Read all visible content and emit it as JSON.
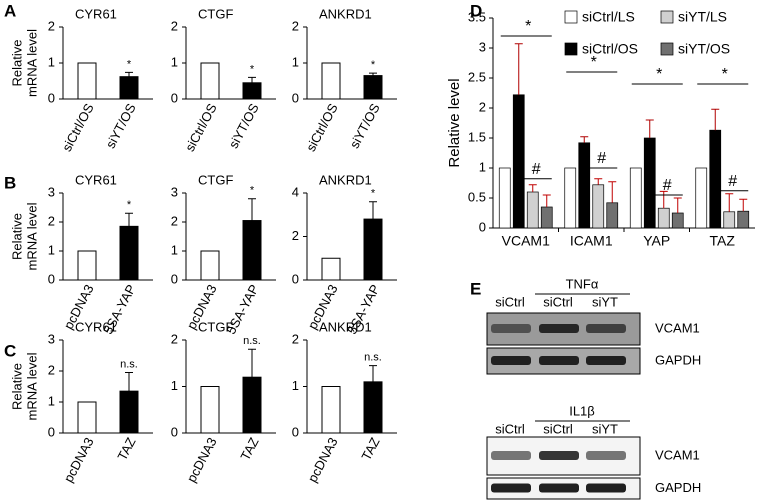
{
  "panels": [
    "A",
    "B",
    "C",
    "D",
    "E"
  ],
  "row_ylabel": [
    "Relative",
    "mRNA level"
  ],
  "chart_data": [
    {
      "type": "bar",
      "title": "CYR61",
      "categories": [
        "siCtrl/OS",
        "siYT/OS"
      ],
      "values": [
        1,
        0.62
      ],
      "errors": [
        null,
        0.12
      ],
      "annotations": [
        null,
        "*"
      ],
      "ylim": [
        0,
        2
      ],
      "yticks": [
        0,
        1,
        2
      ]
    },
    {
      "type": "bar",
      "title": "CTGF",
      "categories": [
        "siCtrl/OS",
        "siYT/OS"
      ],
      "values": [
        1,
        0.45
      ],
      "errors": [
        null,
        0.15
      ],
      "annotations": [
        null,
        "*"
      ],
      "ylim": [
        0,
        2
      ],
      "yticks": [
        0,
        1,
        2
      ]
    },
    {
      "type": "bar",
      "title": "ANKRD1",
      "categories": [
        "siCtrl/OS",
        "siYT/OS"
      ],
      "values": [
        1,
        0.65
      ],
      "errors": [
        null,
        0.07
      ],
      "annotations": [
        null,
        "*"
      ],
      "ylim": [
        0,
        2
      ],
      "yticks": [
        0,
        1,
        2
      ]
    },
    {
      "type": "bar",
      "title": "CYR61",
      "categories": [
        "pcDNA3",
        "5SA-YAP"
      ],
      "values": [
        1,
        1.85
      ],
      "errors": [
        null,
        0.45
      ],
      "annotations": [
        null,
        "*"
      ],
      "ylim": [
        0,
        3
      ],
      "yticks": [
        0,
        1,
        2,
        3
      ]
    },
    {
      "type": "bar",
      "title": "CTGF",
      "categories": [
        "pcDNA3",
        "5SA-YAP"
      ],
      "values": [
        1,
        2.05
      ],
      "errors": [
        null,
        0.75
      ],
      "annotations": [
        null,
        "*"
      ],
      "ylim": [
        0,
        3
      ],
      "yticks": [
        0,
        1,
        2,
        3
      ]
    },
    {
      "type": "bar",
      "title": "ANKRD1",
      "categories": [
        "pcDNA3",
        "5SA-YAP"
      ],
      "values": [
        1,
        2.8
      ],
      "errors": [
        null,
        0.8
      ],
      "annotations": [
        null,
        "*"
      ],
      "ylim": [
        0,
        4
      ],
      "yticks": [
        0,
        2,
        4
      ]
    },
    {
      "type": "bar",
      "title": "CYR61",
      "categories": [
        "pcDNA3",
        "TAZ"
      ],
      "values": [
        1,
        1.35
      ],
      "errors": [
        null,
        0.6
      ],
      "annotations": [
        null,
        "n.s."
      ],
      "ylim": [
        0,
        3
      ],
      "yticks": [
        0,
        1,
        2,
        3
      ]
    },
    {
      "type": "bar",
      "title": "CTGF",
      "categories": [
        "pcDNA3",
        "TAZ"
      ],
      "values": [
        1,
        1.2
      ],
      "errors": [
        null,
        0.6
      ],
      "annotations": [
        null,
        "n.s."
      ],
      "ylim": [
        0,
        2
      ],
      "yticks": [
        0,
        1,
        2
      ]
    },
    {
      "type": "bar",
      "title": "ANKRD1",
      "categories": [
        "pcDNA3",
        "TAZ"
      ],
      "values": [
        1,
        1.1
      ],
      "errors": [
        null,
        0.35
      ],
      "annotations": [
        null,
        "n.s."
      ],
      "ylim": [
        0,
        2
      ],
      "yticks": [
        0,
        1,
        2
      ]
    },
    {
      "type": "grouped-bar",
      "ylabel": "Relative level",
      "categories": [
        "VCAM1",
        "ICAM1",
        "YAP",
        "TAZ"
      ],
      "series": [
        {
          "name": "siCtrl/LS",
          "color": "#ffffff",
          "values": [
            1,
            1,
            1,
            1
          ],
          "errors": [
            null,
            null,
            null,
            null
          ]
        },
        {
          "name": "siCtrl/OS",
          "color": "#000000",
          "values": [
            2.22,
            1.42,
            1.5,
            1.63
          ],
          "errors": [
            0.85,
            0.1,
            0.3,
            0.35
          ]
        },
        {
          "name": "siYT/LS",
          "color": "#d0d0d0",
          "values": [
            0.6,
            0.72,
            0.33,
            0.27
          ],
          "errors": [
            0.12,
            0.1,
            0.28,
            0.3
          ]
        },
        {
          "name": "siYT/OS",
          "color": "#707070",
          "values": [
            0.35,
            0.42,
            0.25,
            0.28
          ],
          "errors": [
            0.2,
            0.35,
            0.25,
            0.2
          ]
        }
      ],
      "significance": [
        {
          "label": "*",
          "y": [
            3.2,
            2.6,
            2.4,
            2.4
          ]
        },
        {
          "label": "#",
          "y": [
            0.82,
            1.0,
            0.55,
            0.62
          ]
        }
      ],
      "ylim": [
        0,
        3.5
      ],
      "yticks": [
        0,
        0.5,
        1,
        1.5,
        2,
        2.5,
        3,
        3.5
      ]
    }
  ],
  "blots": [
    {
      "treatment": "TNFα",
      "lanes": [
        "siCtrl",
        "siCtrl",
        "siYT"
      ],
      "bands": [
        "VCAM1",
        "GAPDH"
      ]
    },
    {
      "treatment": "IL1β",
      "lanes": [
        "siCtrl",
        "siCtrl",
        "siYT"
      ],
      "bands": [
        "VCAM1",
        "GAPDH"
      ]
    }
  ]
}
